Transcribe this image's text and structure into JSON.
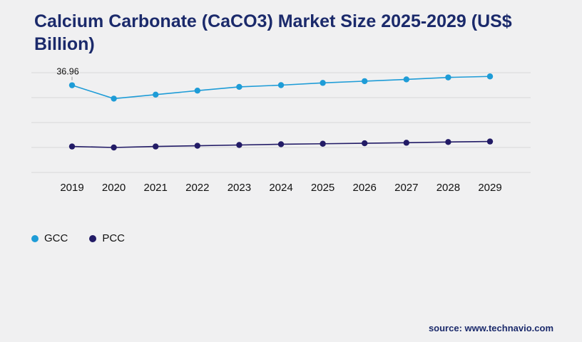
{
  "title": "Calcium Carbonate (CaCO3) Market Size 2025-2029 (US$ Billion)",
  "source": "source: www.technavio.com",
  "colors": {
    "background": "#f0f0f1",
    "title": "#1b2a6b",
    "grid": "#d9d9d9",
    "axis_label": "#111111",
    "gcc": "#1e9cd7",
    "pcc": "#221b66"
  },
  "chart_data": {
    "type": "line",
    "title": "Calcium Carbonate (CaCO3) Market Size 2025-2029 (US$ Billion)",
    "categories": [
      "2019",
      "2020",
      "2021",
      "2022",
      "2023",
      "2024",
      "2025",
      "2026",
      "2027",
      "2028",
      "2029"
    ],
    "series": [
      {
        "name": "GCC",
        "color": "#1e9cd7",
        "values": [
          36.96,
          31.6,
          33.2,
          34.8,
          36.3,
          37.0,
          37.9,
          38.6,
          39.3,
          40.1,
          40.5
        ]
      },
      {
        "name": "PCC",
        "color": "#221b66",
        "values": [
          12.4,
          12.0,
          12.4,
          12.7,
          13.0,
          13.3,
          13.5,
          13.7,
          13.9,
          14.2,
          14.4
        ]
      }
    ],
    "annotations": [
      {
        "series": "GCC",
        "category": "2019",
        "text": "36.96"
      }
    ],
    "xlabel": "",
    "ylabel": "",
    "ylim": [
      2,
      42
    ],
    "grid": true,
    "gridline_count": 5,
    "legend_position": "bottom-left",
    "y_axis_labels_visible": false,
    "units": "US$ Billion"
  }
}
